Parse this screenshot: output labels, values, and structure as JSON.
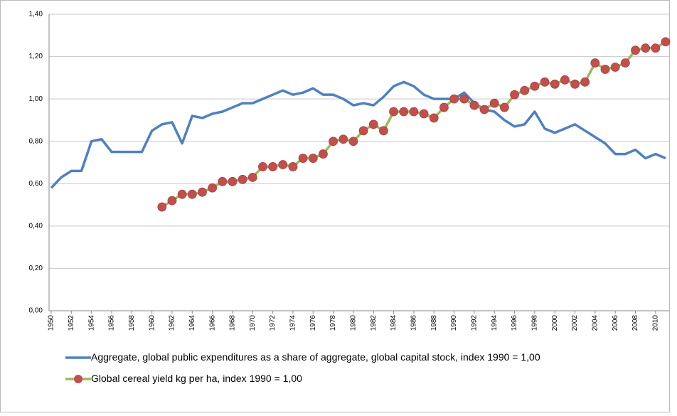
{
  "chart_data": {
    "type": "line",
    "x": [
      1950,
      1951,
      1952,
      1953,
      1954,
      1955,
      1956,
      1957,
      1958,
      1959,
      1960,
      1961,
      1962,
      1963,
      1964,
      1965,
      1966,
      1967,
      1968,
      1969,
      1970,
      1971,
      1972,
      1973,
      1974,
      1975,
      1976,
      1977,
      1978,
      1979,
      1980,
      1981,
      1982,
      1983,
      1984,
      1985,
      1986,
      1987,
      1988,
      1989,
      1990,
      1991,
      1992,
      1993,
      1994,
      1995,
      1996,
      1997,
      1998,
      1999,
      2000,
      2001,
      2002,
      2003,
      2004,
      2005,
      2006,
      2007,
      2008,
      2009,
      2010,
      2011
    ],
    "series": [
      {
        "name": "Aggregate, global public expenditures as a share of aggregate, global capital stock, index 1990 = 1,00",
        "color": "#4f81bd",
        "values": [
          0.58,
          0.63,
          0.66,
          0.66,
          0.8,
          0.81,
          0.75,
          0.75,
          0.75,
          0.75,
          0.85,
          0.88,
          0.89,
          0.79,
          0.92,
          0.91,
          0.93,
          0.94,
          0.96,
          0.98,
          0.98,
          1.0,
          1.02,
          1.04,
          1.02,
          1.03,
          1.05,
          1.02,
          1.02,
          1.0,
          0.97,
          0.98,
          0.97,
          1.01,
          1.06,
          1.08,
          1.06,
          1.02,
          1.0,
          1.0,
          1.0,
          1.03,
          0.98,
          0.95,
          0.94,
          0.9,
          0.87,
          0.88,
          0.94,
          0.86,
          0.84,
          0.86,
          0.88,
          0.85,
          0.82,
          0.79,
          0.74,
          0.74,
          0.76,
          0.72,
          0.74,
          0.72
        ]
      },
      {
        "name": "Global cereal yield kg per ha, index 1990 = 1,00",
        "color": "#9bbb59",
        "marker_color": "#c0504d",
        "values": [
          null,
          null,
          null,
          null,
          null,
          null,
          null,
          null,
          null,
          null,
          null,
          0.49,
          0.52,
          0.55,
          0.55,
          0.56,
          0.58,
          0.61,
          0.61,
          0.62,
          0.63,
          0.68,
          0.68,
          0.69,
          0.68,
          0.72,
          0.72,
          0.74,
          0.8,
          0.81,
          0.8,
          0.85,
          0.88,
          0.85,
          0.94,
          0.94,
          0.94,
          0.93,
          0.91,
          0.96,
          1.0,
          1.0,
          0.97,
          0.95,
          0.98,
          0.96,
          1.02,
          1.04,
          1.06,
          1.08,
          1.07,
          1.09,
          1.07,
          1.08,
          1.17,
          1.14,
          1.15,
          1.17,
          1.23,
          1.24,
          1.24,
          1.27
        ]
      }
    ],
    "xlim": [
      1950,
      2011
    ],
    "xticks": [
      1950,
      1952,
      1954,
      1956,
      1958,
      1960,
      1962,
      1964,
      1966,
      1968,
      1970,
      1972,
      1974,
      1976,
      1978,
      1980,
      1982,
      1984,
      1986,
      1988,
      1990,
      1992,
      1994,
      1996,
      1998,
      2000,
      2002,
      2004,
      2006,
      2008,
      2010
    ],
    "ylim": [
      0,
      1.4
    ],
    "yticks": [
      {
        "value": 0,
        "label": "0,00"
      },
      {
        "value": 0.2,
        "label": "0,20"
      },
      {
        "value": 0.4,
        "label": "0,40"
      },
      {
        "value": 0.6,
        "label": "0,60"
      },
      {
        "value": 0.8,
        "label": "0,80"
      },
      {
        "value": 1.0,
        "label": "1,00"
      },
      {
        "value": 1.2,
        "label": "1,20"
      },
      {
        "value": 1.4,
        "label": "1,40"
      }
    ],
    "grid": true
  }
}
